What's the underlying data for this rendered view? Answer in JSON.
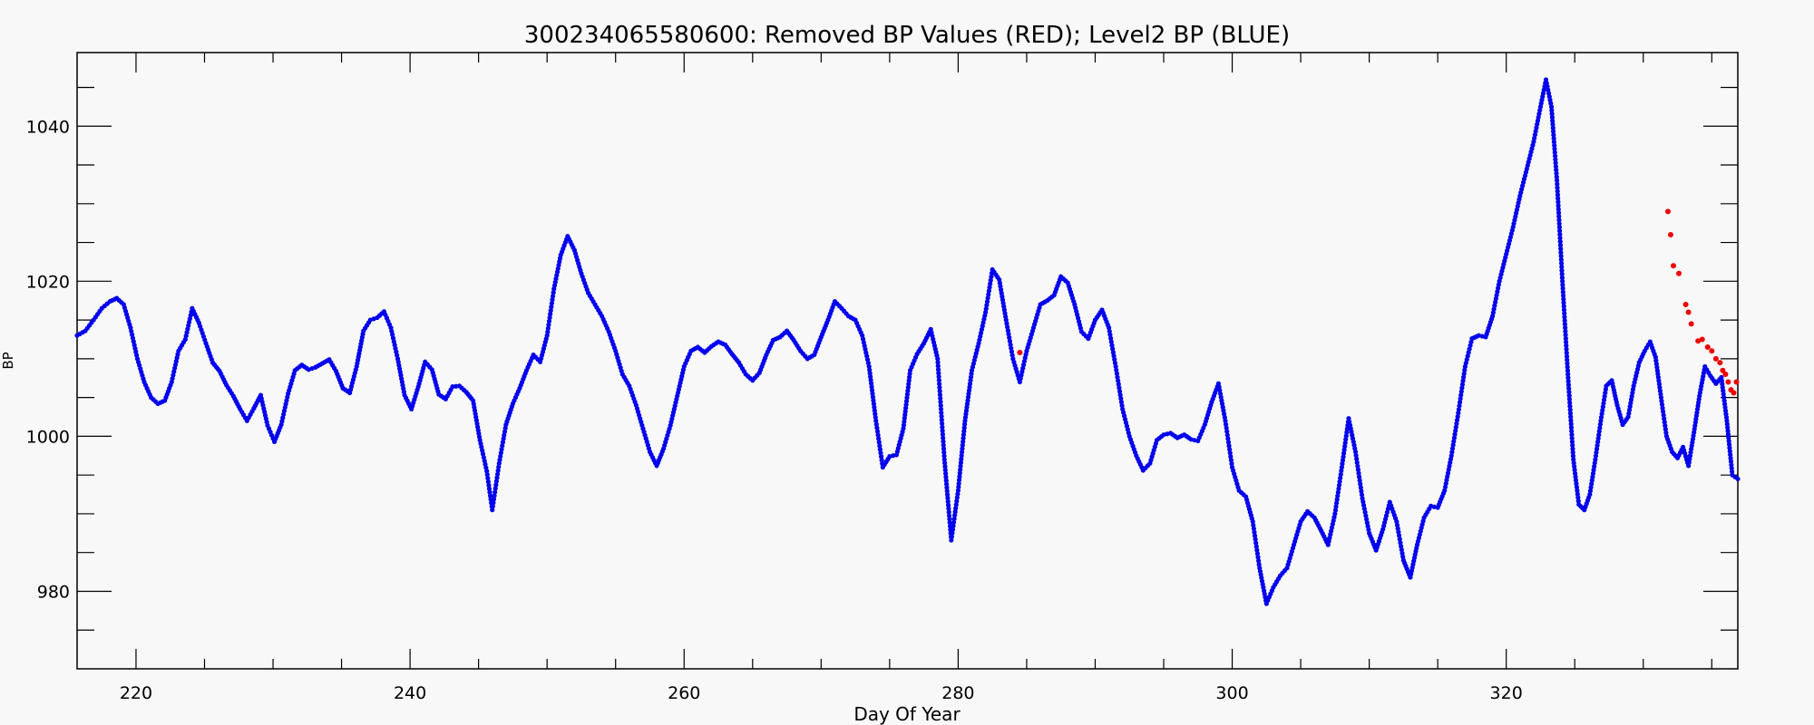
{
  "chart_data": {
    "type": "scatter",
    "title": "300234065580600: Removed BP Values (RED); Level2 BP (BLUE)",
    "xlabel": "Day Of Year",
    "ylabel": "BP",
    "xlim": [
      215.7,
      336.9
    ],
    "ylim": [
      970.0,
      1049.5
    ],
    "x_ticks": [
      220,
      240,
      260,
      280,
      300,
      320
    ],
    "y_ticks": [
      980,
      1000,
      1020,
      1040
    ],
    "grid": false,
    "colors": {
      "level2": "#0000ee",
      "removed": "#ee0000"
    },
    "series": [
      {
        "key": "level2",
        "points": [
          [
            215.7,
            1013
          ],
          [
            216.3,
            1013.6
          ],
          [
            216.9,
            1015
          ],
          [
            217.5,
            1016.5
          ],
          [
            218.1,
            1017.4
          ],
          [
            218.6,
            1017.8
          ],
          [
            219.1,
            1017
          ],
          [
            219.6,
            1014
          ],
          [
            220.1,
            1010
          ],
          [
            220.6,
            1007
          ],
          [
            221.1,
            1005
          ],
          [
            221.6,
            1004.2
          ],
          [
            222.1,
            1004.6
          ],
          [
            222.6,
            1007
          ],
          [
            223.1,
            1011
          ],
          [
            223.6,
            1012.5
          ],
          [
            224.1,
            1016.5
          ],
          [
            224.6,
            1014.6
          ],
          [
            225.1,
            1012
          ],
          [
            225.6,
            1009.5
          ],
          [
            226.1,
            1008.4
          ],
          [
            226.6,
            1006.6
          ],
          [
            227.1,
            1005.2
          ],
          [
            227.6,
            1003.5
          ],
          [
            228.1,
            1002
          ],
          [
            228.6,
            1003.6
          ],
          [
            229.1,
            1005.3
          ],
          [
            229.6,
            1001.4
          ],
          [
            230.1,
            999.3
          ],
          [
            230.6,
            1001.5
          ],
          [
            231.1,
            1005.5
          ],
          [
            231.6,
            1008.5
          ],
          [
            232.1,
            1009.2
          ],
          [
            232.6,
            1008.6
          ],
          [
            233.1,
            1008.9
          ],
          [
            233.6,
            1009.4
          ],
          [
            234.1,
            1009.9
          ],
          [
            234.6,
            1008.4
          ],
          [
            235.1,
            1006.2
          ],
          [
            235.6,
            1005.6
          ],
          [
            236.1,
            1009
          ],
          [
            236.6,
            1013.6
          ],
          [
            237.1,
            1015
          ],
          [
            237.6,
            1015.3
          ],
          [
            238.1,
            1016.1
          ],
          [
            238.6,
            1014
          ],
          [
            239.1,
            1010
          ],
          [
            239.6,
            1005.3
          ],
          [
            240.1,
            1003.5
          ],
          [
            240.6,
            1006.4
          ],
          [
            241.1,
            1009.6
          ],
          [
            241.6,
            1008.6
          ],
          [
            242.1,
            1005.4
          ],
          [
            242.6,
            1004.8
          ],
          [
            243.1,
            1006.4
          ],
          [
            243.6,
            1006.5
          ],
          [
            244.1,
            1005.7
          ],
          [
            244.6,
            1004.6
          ],
          [
            245.1,
            999.5
          ],
          [
            245.6,
            995.5
          ],
          [
            246.0,
            990.5
          ],
          [
            246.5,
            996.5
          ],
          [
            247.0,
            1001.5
          ],
          [
            247.5,
            1004.2
          ],
          [
            248.0,
            1006.2
          ],
          [
            248.5,
            1008.5
          ],
          [
            249.0,
            1010.5
          ],
          [
            249.5,
            1009.6
          ],
          [
            250.0,
            1013
          ],
          [
            250.5,
            1019
          ],
          [
            251.0,
            1023.4
          ],
          [
            251.5,
            1025.8
          ],
          [
            252.0,
            1024
          ],
          [
            252.5,
            1021
          ],
          [
            253.0,
            1018.5
          ],
          [
            253.5,
            1017
          ],
          [
            254.0,
            1015.5
          ],
          [
            254.5,
            1013.5
          ],
          [
            255.0,
            1011
          ],
          [
            255.5,
            1008
          ],
          [
            256.0,
            1006.5
          ],
          [
            256.5,
            1004
          ],
          [
            257.0,
            1001
          ],
          [
            257.5,
            998
          ],
          [
            258.0,
            996.2
          ],
          [
            258.5,
            998.4
          ],
          [
            259.0,
            1001.4
          ],
          [
            259.5,
            1005.2
          ],
          [
            260.0,
            1009
          ],
          [
            260.5,
            1011
          ],
          [
            261.0,
            1011.5
          ],
          [
            261.5,
            1010.8
          ],
          [
            262.0,
            1011.6
          ],
          [
            262.5,
            1012.2
          ],
          [
            263.0,
            1011.8
          ],
          [
            263.5,
            1010.6
          ],
          [
            264.0,
            1009.5
          ],
          [
            264.5,
            1008
          ],
          [
            265.0,
            1007.2
          ],
          [
            265.5,
            1008.2
          ],
          [
            266.0,
            1010.5
          ],
          [
            266.5,
            1012.4
          ],
          [
            267.0,
            1012.8
          ],
          [
            267.5,
            1013.6
          ],
          [
            268.0,
            1012.4
          ],
          [
            268.5,
            1011
          ],
          [
            269.0,
            1010
          ],
          [
            269.5,
            1010.5
          ],
          [
            270.0,
            1012.8
          ],
          [
            270.5,
            1015
          ],
          [
            271.0,
            1017.4
          ],
          [
            271.5,
            1016.5
          ],
          [
            272.0,
            1015.5
          ],
          [
            272.5,
            1015
          ],
          [
            273.0,
            1013
          ],
          [
            273.5,
            1009
          ],
          [
            274.0,
            1002
          ],
          [
            274.5,
            996
          ],
          [
            275.0,
            997.4
          ],
          [
            275.5,
            997.6
          ],
          [
            276.0,
            1001
          ],
          [
            276.5,
            1008.5
          ],
          [
            277.0,
            1010.6
          ],
          [
            277.5,
            1012
          ],
          [
            278.0,
            1013.8
          ],
          [
            278.5,
            1010
          ],
          [
            279.0,
            997
          ],
          [
            279.5,
            986.6
          ],
          [
            280.0,
            993
          ],
          [
            280.5,
            1002
          ],
          [
            281.0,
            1008.5
          ],
          [
            281.5,
            1012
          ],
          [
            282.0,
            1016
          ],
          [
            282.5,
            1021.5
          ],
          [
            283.0,
            1020.2
          ],
          [
            283.5,
            1015
          ],
          [
            284.0,
            1010
          ],
          [
            284.5,
            1007
          ],
          [
            285.0,
            1011
          ],
          [
            285.5,
            1014
          ],
          [
            286.0,
            1017
          ],
          [
            286.5,
            1017.5
          ],
          [
            287.0,
            1018.2
          ],
          [
            287.5,
            1020.6
          ],
          [
            288.0,
            1019.8
          ],
          [
            288.5,
            1017
          ],
          [
            289.0,
            1013.5
          ],
          [
            289.5,
            1012.6
          ],
          [
            290.0,
            1015
          ],
          [
            290.5,
            1016.3
          ],
          [
            291.0,
            1014
          ],
          [
            291.5,
            1009
          ],
          [
            292.0,
            1003.5
          ],
          [
            292.5,
            1000
          ],
          [
            293.0,
            997.5
          ],
          [
            293.5,
            995.6
          ],
          [
            294.0,
            996.5
          ],
          [
            294.5,
            999.5
          ],
          [
            295.0,
            1000.2
          ],
          [
            295.5,
            1000.4
          ],
          [
            296.0,
            999.8
          ],
          [
            296.5,
            1000.2
          ],
          [
            297.0,
            999.6
          ],
          [
            297.5,
            999.4
          ],
          [
            298.0,
            1001.5
          ],
          [
            298.5,
            1004.4
          ],
          [
            299.0,
            1006.8
          ],
          [
            299.5,
            1002
          ],
          [
            300.0,
            996
          ],
          [
            300.5,
            993
          ],
          [
            301.0,
            992.2
          ],
          [
            301.5,
            989
          ],
          [
            302.0,
            983
          ],
          [
            302.5,
            978.4
          ],
          [
            303.0,
            980.5
          ],
          [
            303.5,
            982
          ],
          [
            304.0,
            983
          ],
          [
            304.5,
            986
          ],
          [
            305.0,
            989
          ],
          [
            305.5,
            990.3
          ],
          [
            306.0,
            989.5
          ],
          [
            306.5,
            987.8
          ],
          [
            307.0,
            986
          ],
          [
            307.5,
            990
          ],
          [
            308.0,
            996
          ],
          [
            308.5,
            1002.3
          ],
          [
            309.0,
            998
          ],
          [
            309.5,
            992
          ],
          [
            310.0,
            987.5
          ],
          [
            310.5,
            985.3
          ],
          [
            311.0,
            988
          ],
          [
            311.5,
            991.5
          ],
          [
            312.0,
            989
          ],
          [
            312.5,
            984
          ],
          [
            313.0,
            981.8
          ],
          [
            313.5,
            986
          ],
          [
            314.0,
            989.5
          ],
          [
            314.5,
            991
          ],
          [
            315.0,
            990.8
          ],
          [
            315.5,
            993
          ],
          [
            316.0,
            997.5
          ],
          [
            316.5,
            1003
          ],
          [
            317.0,
            1009
          ],
          [
            317.5,
            1012.6
          ],
          [
            318.0,
            1013
          ],
          [
            318.5,
            1012.8
          ],
          [
            319.0,
            1015.5
          ],
          [
            319.5,
            1020
          ],
          [
            320.0,
            1023.5
          ],
          [
            320.5,
            1027
          ],
          [
            321.0,
            1031
          ],
          [
            321.5,
            1034.5
          ],
          [
            322.0,
            1038
          ],
          [
            322.5,
            1042.5
          ],
          [
            322.9,
            1046
          ],
          [
            323.3,
            1042.5
          ],
          [
            323.7,
            1033
          ],
          [
            324.1,
            1020
          ],
          [
            324.5,
            1008
          ],
          [
            324.9,
            997
          ],
          [
            325.3,
            991.2
          ],
          [
            325.7,
            990.5
          ],
          [
            326.1,
            992.5
          ],
          [
            326.5,
            997
          ],
          [
            326.9,
            1002
          ],
          [
            327.3,
            1006.5
          ],
          [
            327.7,
            1007.2
          ],
          [
            328.1,
            1004
          ],
          [
            328.5,
            1001.5
          ],
          [
            328.9,
            1002.5
          ],
          [
            329.3,
            1006.5
          ],
          [
            329.7,
            1009.5
          ],
          [
            330.1,
            1011
          ],
          [
            330.5,
            1012.2
          ],
          [
            330.9,
            1010.2
          ],
          [
            331.3,
            1005
          ],
          [
            331.7,
            1000
          ],
          [
            332.1,
            998
          ],
          [
            332.5,
            997.2
          ],
          [
            332.9,
            998.6
          ],
          [
            333.3,
            996.2
          ],
          [
            333.7,
            1000.5
          ],
          [
            334.1,
            1005.2
          ],
          [
            334.5,
            1009
          ],
          [
            334.9,
            1007.8
          ],
          [
            335.3,
            1006.8
          ],
          [
            335.7,
            1007.6
          ],
          [
            336.1,
            1002
          ],
          [
            336.5,
            995
          ],
          [
            336.9,
            994.5
          ]
        ]
      },
      {
        "key": "removed",
        "points": [
          [
            284.5,
            1010.8
          ],
          [
            331.8,
            1029
          ],
          [
            332.0,
            1026
          ],
          [
            332.2,
            1022
          ],
          [
            332.6,
            1021
          ],
          [
            333.1,
            1017
          ],
          [
            333.3,
            1016
          ],
          [
            333.5,
            1014.5
          ],
          [
            334.0,
            1012.3
          ],
          [
            334.3,
            1012.5
          ],
          [
            334.7,
            1011.5
          ],
          [
            335.0,
            1011
          ],
          [
            335.3,
            1010
          ],
          [
            335.6,
            1009.5
          ],
          [
            335.8,
            1008.5
          ],
          [
            336.0,
            1008
          ],
          [
            336.2,
            1007
          ],
          [
            336.4,
            1006
          ],
          [
            336.6,
            1005.6
          ],
          [
            336.8,
            1007
          ]
        ]
      }
    ]
  }
}
